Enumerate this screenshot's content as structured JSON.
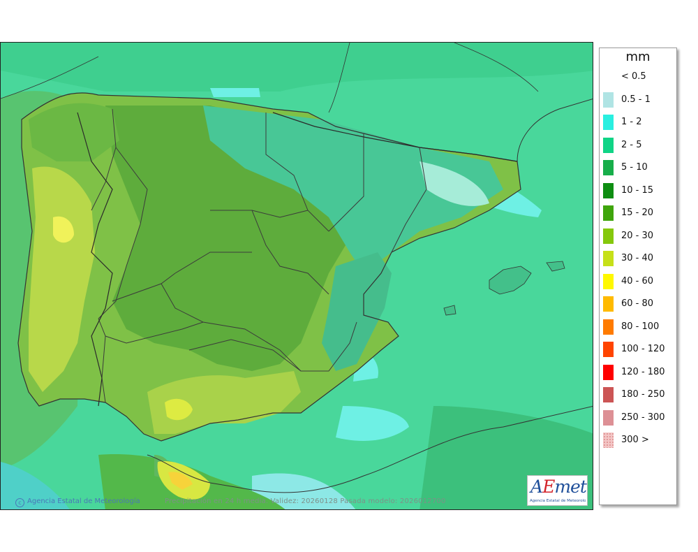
{
  "legend": {
    "unit": "mm",
    "items": [
      {
        "label": "< 0.5",
        "color": "#ffffff"
      },
      {
        "label": "0.5 - 1",
        "color": "#b0e4e4"
      },
      {
        "label": "1 - 2",
        "color": "#29efe0"
      },
      {
        "label": "2 - 5",
        "color": "#10d486"
      },
      {
        "label": "5 - 10",
        "color": "#17ae4a"
      },
      {
        "label": "10 - 15",
        "color": "#0e8e12"
      },
      {
        "label": "15 - 20",
        "color": "#3fa50c"
      },
      {
        "label": "20 - 30",
        "color": "#85c80c"
      },
      {
        "label": "30 - 40",
        "color": "#c6e019"
      },
      {
        "label": "40 - 60",
        "color": "#fff800"
      },
      {
        "label": "60 - 80",
        "color": "#ffba00"
      },
      {
        "label": "80 - 100",
        "color": "#ff7b00"
      },
      {
        "label": "100 - 120",
        "color": "#ff4400"
      },
      {
        "label": "120 - 180",
        "color": "#ff0000"
      },
      {
        "label": "180 - 250",
        "color": "#cc5555"
      },
      {
        "label": "250 - 300",
        "color": "#dd9095"
      },
      {
        "label": "300 >",
        "color": "#f3c6c6"
      }
    ]
  },
  "footer": {
    "credit": "Agencia Estatal de Meteorología",
    "caption": "Precipitación en 24 h media. Validez: 20260128 Pasada modelo: 2026012700"
  },
  "logo": {
    "brand": "AEmet",
    "subtitle": "Agencia Estatal de Meteorología"
  }
}
